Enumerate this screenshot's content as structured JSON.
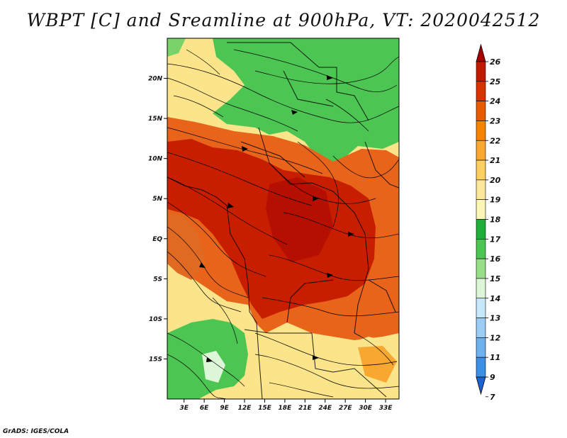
{
  "title": "WBPT [C] and Sreamline at 900hPa, VT: 2020042512",
  "credit": "GrADS: IGES/COLA",
  "map": {
    "lat_labels": [
      "20N",
      "15N",
      "10N",
      "5N",
      "EQ",
      "5S",
      "10S",
      "15S"
    ],
    "lat_values": [
      20,
      15,
      10,
      5,
      0,
      -5,
      -10,
      -15
    ],
    "lon_labels": [
      "3E",
      "6E",
      "9E",
      "12E",
      "15E",
      "18E",
      "21E",
      "24E",
      "27E",
      "30E",
      "33E"
    ],
    "lon_values": [
      3,
      6,
      9,
      12,
      15,
      18,
      21,
      24,
      27,
      30,
      33
    ],
    "lon_range": [
      0.5,
      35
    ],
    "lat_range": [
      -20,
      25
    ]
  },
  "colorbar": {
    "labels": [
      "26",
      "25",
      "24",
      "23",
      "22",
      "21",
      "20",
      "19",
      "18",
      "17",
      "16",
      "15",
      "14",
      "13",
      "12",
      "11",
      "9",
      "7"
    ],
    "colors": [
      "#a50000",
      "#c01a00",
      "#d83200",
      "#e65a00",
      "#f38300",
      "#f8a830",
      "#fbcf62",
      "#fde79a",
      "#fdf6b6",
      "#1fae3a",
      "#4cc552",
      "#96df86",
      "#ddf6d7",
      "#c7e7fb",
      "#9ccdf5",
      "#6fb0ee",
      "#3d8fe6",
      "#1c62d2"
    ]
  },
  "colors": {
    "hot": "#c81e00",
    "warm": "#e8641a",
    "mild": "#fce48a",
    "cool": "#4cc552",
    "streamline": "#000000"
  }
}
